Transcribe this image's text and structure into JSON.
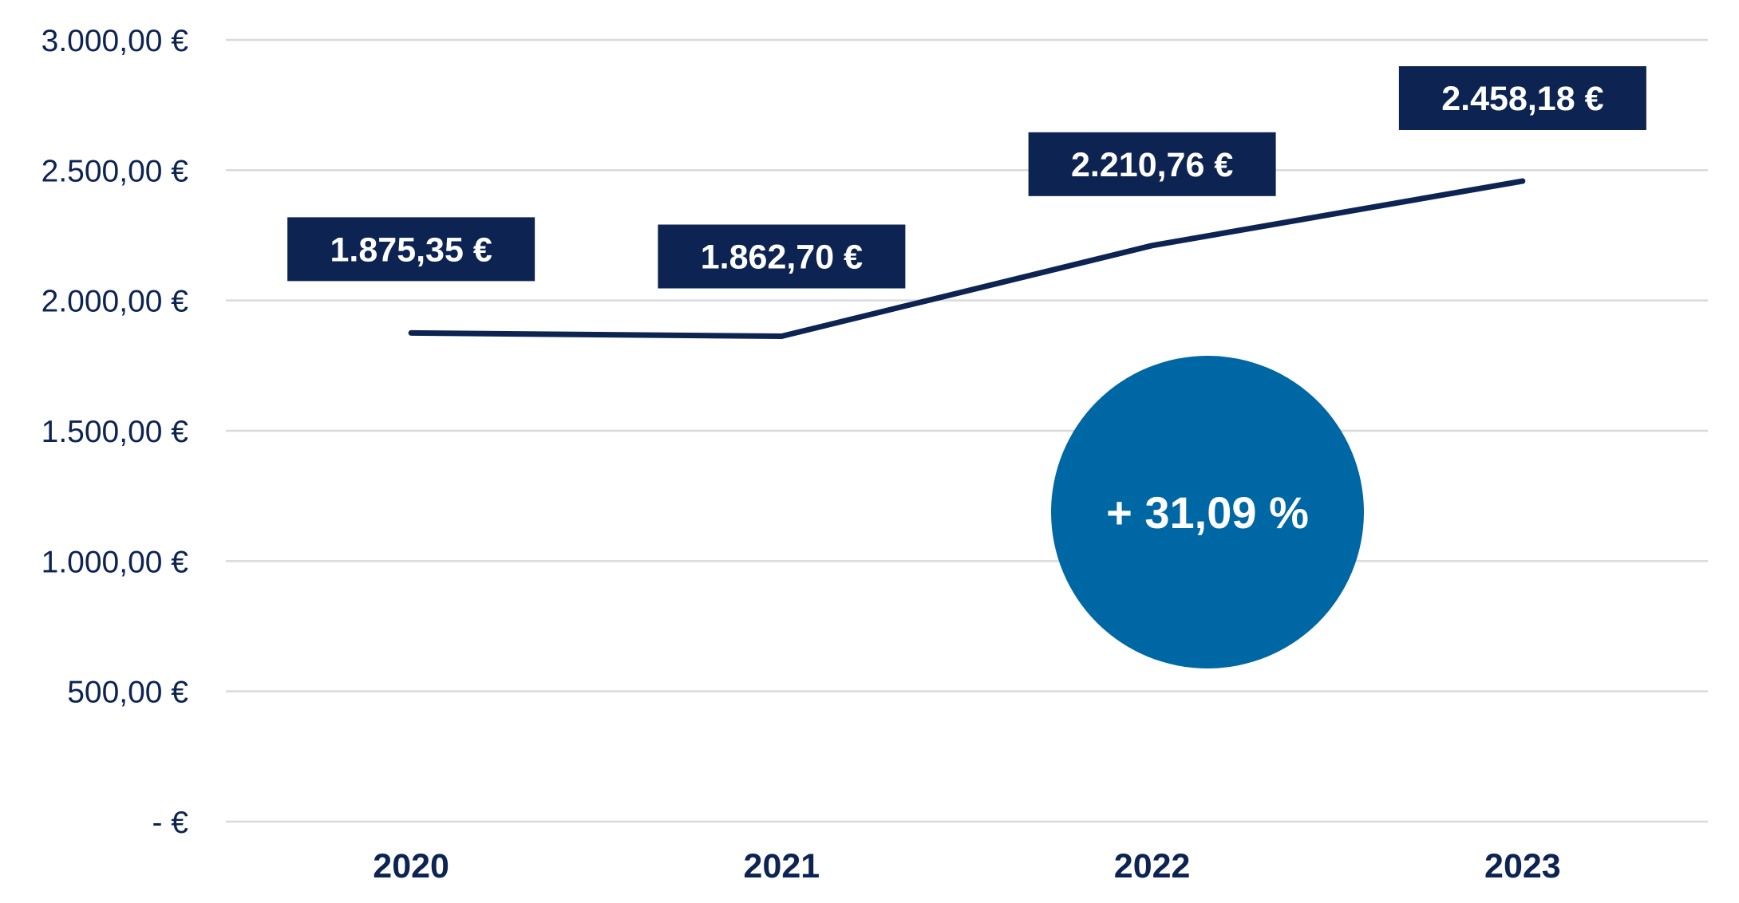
{
  "chart_data": {
    "type": "line",
    "categories": [
      "2020",
      "2021",
      "2022",
      "2023"
    ],
    "series": [
      {
        "values": [
          1875.35,
          1862.7,
          2210.76,
          2458.18
        ]
      }
    ],
    "data_labels": [
      "1.875,35 €",
      "1.862,70 €",
      "2.210,76 €",
      "2.458,18 €"
    ],
    "y_ticks": [
      0,
      500,
      1000,
      1500,
      2000,
      2500,
      3000
    ],
    "y_tick_labels": [
      "-   €",
      "500,00 €",
      "1.000,00 €",
      "1.500,00 €",
      "2.000,00 €",
      "2.500,00 €",
      "3.000,00 €"
    ],
    "ylim": [
      0,
      3000
    ],
    "grid": true,
    "annotation": "+ 31,09 %",
    "title": "",
    "xlabel": "",
    "ylabel": ""
  },
  "colors": {
    "line": "#0d2452",
    "label_box": "#0d2452",
    "badge": "#0067a5",
    "axis_text": "#0d2452",
    "grid": "#d9d9d9"
  }
}
